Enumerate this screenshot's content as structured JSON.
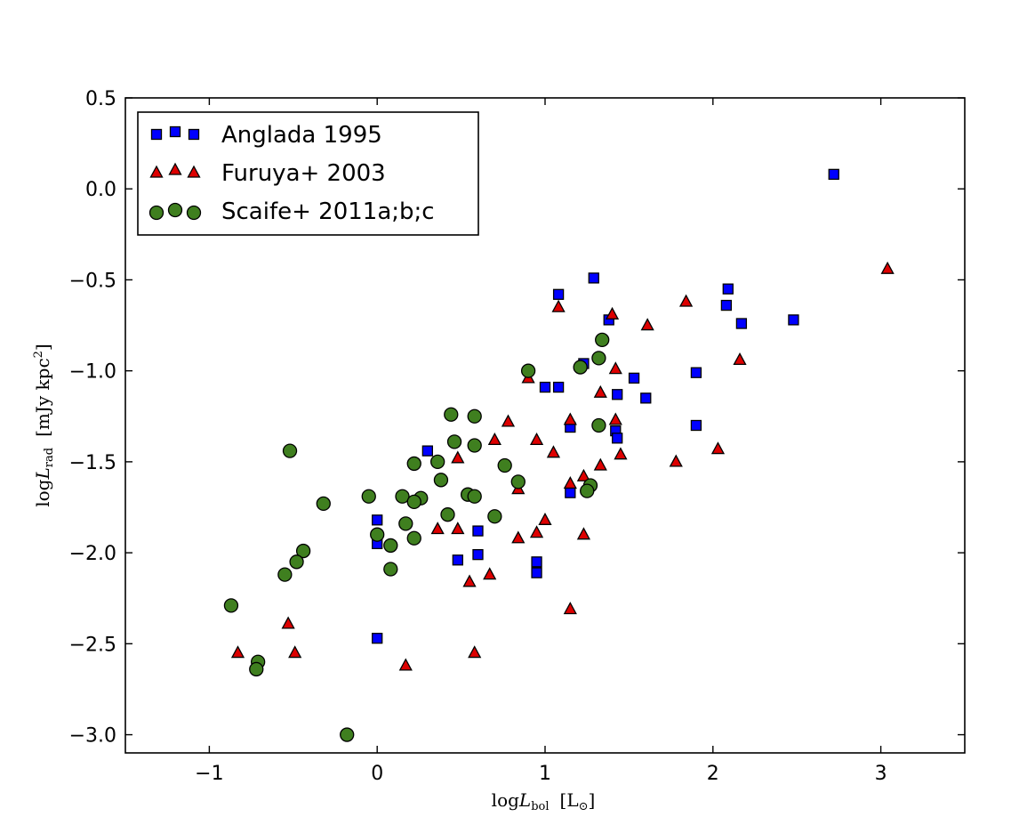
{
  "chart_data": {
    "type": "scatter",
    "xlabel": "logL_bol [L_⊙]",
    "ylabel": "logL_rad [mJy kpc²]",
    "xlim": [
      -1.5,
      3.5
    ],
    "ylim": [
      -3.1,
      0.5
    ],
    "x_ticks": [
      "−1",
      "0",
      "1",
      "2",
      "3"
    ],
    "y_ticks": [
      "0.5",
      "0.0",
      "−0.5",
      "−1.0",
      "−1.5",
      "−2.0",
      "−2.5",
      "−3.0"
    ],
    "grid": false,
    "legend_position": "top-left",
    "series": [
      {
        "name": "Anglada 1995",
        "marker": "square",
        "color": "#0000ff",
        "points": [
          [
            2.72,
            0.08
          ],
          [
            1.29,
            -0.49
          ],
          [
            1.08,
            -0.58
          ],
          [
            2.09,
            -0.55
          ],
          [
            2.08,
            -0.64
          ],
          [
            2.48,
            -0.72
          ],
          [
            2.17,
            -0.74
          ],
          [
            1.38,
            -0.72
          ],
          [
            1.23,
            -0.96
          ],
          [
            1.53,
            -1.04
          ],
          [
            1.0,
            -1.09
          ],
          [
            1.08,
            -1.09
          ],
          [
            1.9,
            -1.01
          ],
          [
            1.43,
            -1.13
          ],
          [
            1.6,
            -1.15
          ],
          [
            1.15,
            -1.31
          ],
          [
            1.42,
            -1.33
          ],
          [
            1.43,
            -1.37
          ],
          [
            1.9,
            -1.3
          ],
          [
            0.3,
            -1.44
          ],
          [
            1.15,
            -1.67
          ],
          [
            0.0,
            -1.82
          ],
          [
            0.6,
            -1.88
          ],
          [
            0.0,
            -1.95
          ],
          [
            0.6,
            -2.01
          ],
          [
            0.48,
            -2.04
          ],
          [
            0.95,
            -2.05
          ],
          [
            0.95,
            -2.11
          ],
          [
            0.0,
            -2.47
          ]
        ]
      },
      {
        "name": "Furuya+ 2003",
        "marker": "triangle",
        "color": "#dd0000",
        "points": [
          [
            3.04,
            -0.44
          ],
          [
            1.08,
            -0.65
          ],
          [
            1.84,
            -0.62
          ],
          [
            1.4,
            -0.69
          ],
          [
            1.61,
            -0.75
          ],
          [
            2.16,
            -0.94
          ],
          [
            1.42,
            -0.99
          ],
          [
            0.9,
            -1.04
          ],
          [
            1.33,
            -1.12
          ],
          [
            1.15,
            -1.27
          ],
          [
            1.42,
            -1.27
          ],
          [
            0.78,
            -1.28
          ],
          [
            0.7,
            -1.38
          ],
          [
            0.95,
            -1.38
          ],
          [
            1.05,
            -1.45
          ],
          [
            1.45,
            -1.46
          ],
          [
            0.48,
            -1.48
          ],
          [
            1.78,
            -1.5
          ],
          [
            1.33,
            -1.52
          ],
          [
            2.03,
            -1.43
          ],
          [
            1.23,
            -1.58
          ],
          [
            1.15,
            -1.62
          ],
          [
            0.84,
            -1.65
          ],
          [
            1.0,
            -1.82
          ],
          [
            0.36,
            -1.87
          ],
          [
            0.48,
            -1.87
          ],
          [
            0.95,
            -1.89
          ],
          [
            0.84,
            -1.92
          ],
          [
            1.23,
            -1.9
          ],
          [
            0.67,
            -2.12
          ],
          [
            0.55,
            -2.16
          ],
          [
            1.15,
            -2.31
          ],
          [
            -0.53,
            -2.39
          ],
          [
            -0.83,
            -2.55
          ],
          [
            -0.49,
            -2.55
          ],
          [
            0.58,
            -2.55
          ],
          [
            0.17,
            -2.62
          ]
        ]
      },
      {
        "name": "Scaife+ 2011a;b;c",
        "marker": "circle",
        "color": "#3f7f1f",
        "points": [
          [
            1.34,
            -0.83
          ],
          [
            1.32,
            -0.93
          ],
          [
            0.9,
            -1.0
          ],
          [
            1.21,
            -0.98
          ],
          [
            0.44,
            -1.24
          ],
          [
            0.58,
            -1.25
          ],
          [
            1.32,
            -1.3
          ],
          [
            0.46,
            -1.39
          ],
          [
            0.58,
            -1.41
          ],
          [
            -0.52,
            -1.44
          ],
          [
            0.22,
            -1.51
          ],
          [
            0.36,
            -1.5
          ],
          [
            0.76,
            -1.52
          ],
          [
            0.38,
            -1.6
          ],
          [
            0.84,
            -1.61
          ],
          [
            1.27,
            -1.63
          ],
          [
            1.25,
            -1.66
          ],
          [
            0.54,
            -1.68
          ],
          [
            0.58,
            -1.69
          ],
          [
            -0.05,
            -1.69
          ],
          [
            0.15,
            -1.69
          ],
          [
            0.26,
            -1.7
          ],
          [
            0.22,
            -1.72
          ],
          [
            -0.32,
            -1.73
          ],
          [
            0.42,
            -1.79
          ],
          [
            0.7,
            -1.8
          ],
          [
            0.17,
            -1.84
          ],
          [
            0.0,
            -1.9
          ],
          [
            0.22,
            -1.92
          ],
          [
            0.08,
            -1.96
          ],
          [
            -0.44,
            -1.99
          ],
          [
            -0.48,
            -2.05
          ],
          [
            0.08,
            -2.09
          ],
          [
            -0.55,
            -2.12
          ],
          [
            -0.87,
            -2.29
          ],
          [
            -0.71,
            -2.6
          ],
          [
            -0.72,
            -2.64
          ],
          [
            -0.18,
            -3.0
          ]
        ]
      }
    ]
  }
}
